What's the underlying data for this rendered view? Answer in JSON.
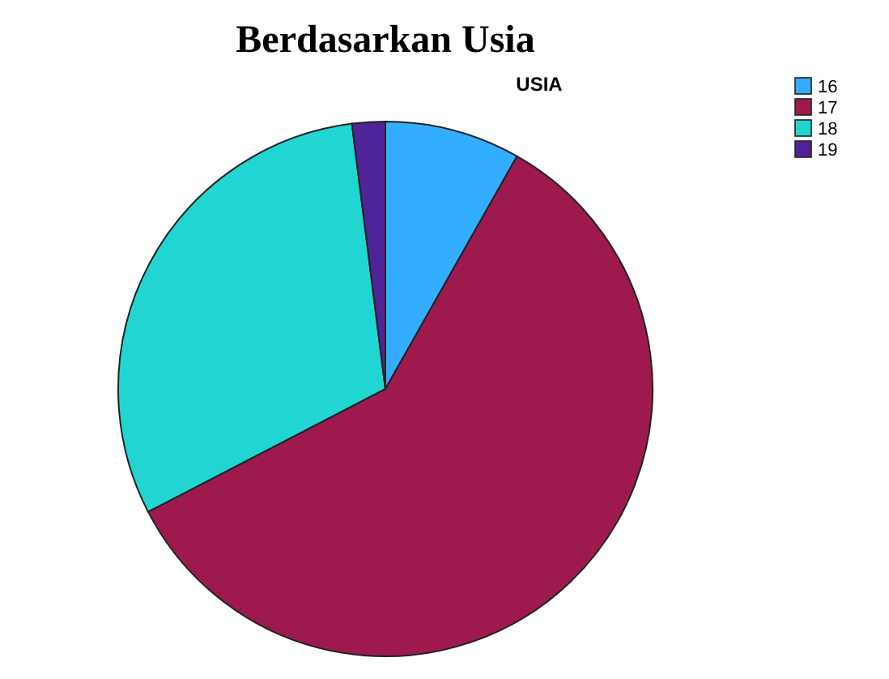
{
  "chart_data": {
    "type": "pie",
    "title": "Berdasarkan Usia",
    "subtitle": "USIA",
    "categories": [
      "16",
      "17",
      "18",
      "19"
    ],
    "values": [
      8.2,
      59.2,
      30.6,
      2.0
    ],
    "colors": [
      "#33adff",
      "#9e1a4e",
      "#21d6d2",
      "#4f2499"
    ],
    "legend": "top right"
  }
}
